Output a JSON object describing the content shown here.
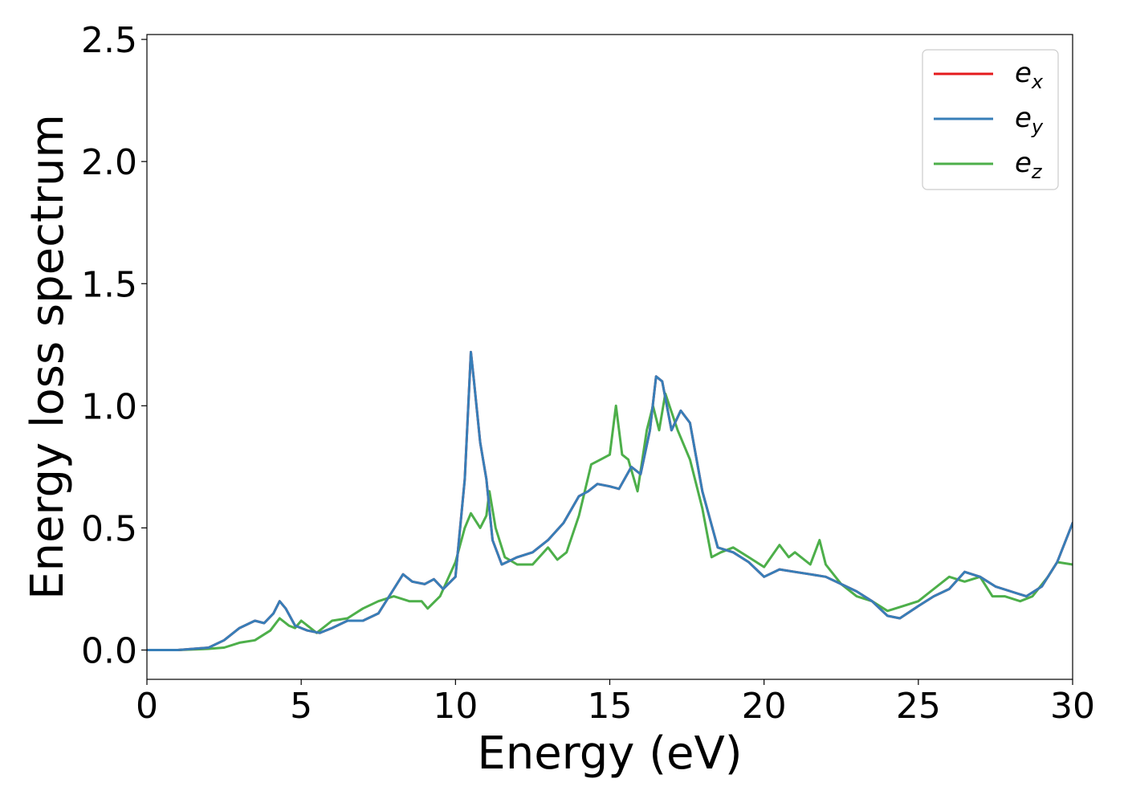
{
  "chart_data": {
    "type": "line",
    "xlabel": "Energy (eV)",
    "ylabel": "Energy loss spectrum",
    "xlim": [
      0,
      30
    ],
    "ylim": [
      -0.12,
      2.52
    ],
    "xticks": [
      "0",
      "5",
      "10",
      "15",
      "20",
      "25",
      "30"
    ],
    "yticks": [
      "0.0",
      "0.5",
      "1.0",
      "1.5",
      "2.0",
      "2.5"
    ],
    "grid": false,
    "legend_position": "top-right",
    "series": [
      {
        "name": "e_x",
        "label_base": "e",
        "label_sub": "x",
        "color": "#e41a1c",
        "x": [
          0,
          1,
          2,
          2.5,
          3,
          3.5,
          3.8,
          4.1,
          4.3,
          4.5,
          4.8,
          5.2,
          5.6,
          6,
          6.5,
          7,
          7.5,
          8,
          8.3,
          8.6,
          9,
          9.3,
          9.6,
          10,
          10.3,
          10.5,
          10.6,
          10.8,
          11,
          11.2,
          11.5,
          12,
          12.5,
          13,
          13.5,
          14,
          14.3,
          14.6,
          15,
          15.3,
          15.7,
          16,
          16.3,
          16.5,
          16.7,
          17,
          17.3,
          17.6,
          18,
          18.5,
          19,
          19.5,
          20,
          20.5,
          21,
          21.5,
          22,
          22.5,
          23,
          23.5,
          24,
          24.4,
          25,
          25.5,
          26,
          26.5,
          27,
          27.5,
          28,
          28.5,
          29,
          29.5,
          30
        ],
        "y": [
          0,
          0,
          0.01,
          0.04,
          0.09,
          0.12,
          0.11,
          0.15,
          0.2,
          0.17,
          0.1,
          0.08,
          0.07,
          0.09,
          0.12,
          0.12,
          0.15,
          0.25,
          0.31,
          0.28,
          0.27,
          0.29,
          0.25,
          0.3,
          0.7,
          1.22,
          1.1,
          0.85,
          0.7,
          0.45,
          0.35,
          0.38,
          0.4,
          0.45,
          0.52,
          0.63,
          0.65,
          0.68,
          0.67,
          0.66,
          0.75,
          0.72,
          0.9,
          1.12,
          1.1,
          0.9,
          0.98,
          0.93,
          0.65,
          0.42,
          0.4,
          0.36,
          0.3,
          0.33,
          0.32,
          0.31,
          0.3,
          0.27,
          0.24,
          0.2,
          0.14,
          0.13,
          0.18,
          0.22,
          0.25,
          0.32,
          0.3,
          0.26,
          0.24,
          0.22,
          0.26,
          0.36,
          0.52
        ]
      },
      {
        "name": "e_y",
        "label_base": "e",
        "label_sub": "y",
        "color": "#377eb8",
        "x": [
          0,
          1,
          2,
          2.5,
          3,
          3.5,
          3.8,
          4.1,
          4.3,
          4.5,
          4.8,
          5.2,
          5.6,
          6,
          6.5,
          7,
          7.5,
          8,
          8.3,
          8.6,
          9,
          9.3,
          9.6,
          10,
          10.3,
          10.5,
          10.6,
          10.8,
          11,
          11.2,
          11.5,
          12,
          12.5,
          13,
          13.5,
          14,
          14.3,
          14.6,
          15,
          15.3,
          15.7,
          16,
          16.3,
          16.5,
          16.7,
          17,
          17.3,
          17.6,
          18,
          18.5,
          19,
          19.5,
          20,
          20.5,
          21,
          21.5,
          22,
          22.5,
          23,
          23.5,
          24,
          24.4,
          25,
          25.5,
          26,
          26.5,
          27,
          27.5,
          28,
          28.5,
          29,
          29.5,
          30
        ],
        "y": [
          0,
          0,
          0.01,
          0.04,
          0.09,
          0.12,
          0.11,
          0.15,
          0.2,
          0.17,
          0.1,
          0.08,
          0.07,
          0.09,
          0.12,
          0.12,
          0.15,
          0.25,
          0.31,
          0.28,
          0.27,
          0.29,
          0.25,
          0.3,
          0.7,
          1.22,
          1.1,
          0.85,
          0.7,
          0.45,
          0.35,
          0.38,
          0.4,
          0.45,
          0.52,
          0.63,
          0.65,
          0.68,
          0.67,
          0.66,
          0.75,
          0.72,
          0.9,
          1.12,
          1.1,
          0.9,
          0.98,
          0.93,
          0.65,
          0.42,
          0.4,
          0.36,
          0.3,
          0.33,
          0.32,
          0.31,
          0.3,
          0.27,
          0.24,
          0.2,
          0.14,
          0.13,
          0.18,
          0.22,
          0.25,
          0.32,
          0.3,
          0.26,
          0.24,
          0.22,
          0.26,
          0.36,
          0.52
        ]
      },
      {
        "name": "e_z",
        "label_base": "e",
        "label_sub": "z",
        "color": "#4daf4a",
        "x": [
          0,
          1,
          2,
          2.5,
          3,
          3.5,
          4,
          4.3,
          4.6,
          4.8,
          5,
          5.5,
          6,
          6.5,
          7,
          7.5,
          8,
          8.5,
          8.9,
          9.1,
          9.5,
          10,
          10.3,
          10.5,
          10.8,
          11,
          11.1,
          11.3,
          11.6,
          12,
          12.5,
          13,
          13.3,
          13.6,
          14,
          14.4,
          14.7,
          15,
          15.2,
          15.4,
          15.6,
          15.9,
          16.2,
          16.4,
          16.6,
          16.8,
          17.2,
          17.6,
          18,
          18.3,
          18.6,
          19,
          19.5,
          20,
          20.5,
          20.8,
          21,
          21.5,
          21.8,
          22,
          22.5,
          23,
          23.5,
          24,
          24.5,
          25,
          25.5,
          26,
          26.5,
          27,
          27.4,
          27.8,
          28.3,
          28.7,
          29.2,
          29.5,
          30
        ],
        "y": [
          0,
          0,
          0.005,
          0.01,
          0.03,
          0.04,
          0.08,
          0.13,
          0.1,
          0.09,
          0.12,
          0.07,
          0.12,
          0.13,
          0.17,
          0.2,
          0.22,
          0.2,
          0.2,
          0.17,
          0.22,
          0.36,
          0.5,
          0.56,
          0.5,
          0.55,
          0.65,
          0.5,
          0.38,
          0.35,
          0.35,
          0.42,
          0.37,
          0.4,
          0.55,
          0.76,
          0.78,
          0.8,
          1.0,
          0.8,
          0.78,
          0.65,
          0.9,
          1.0,
          0.9,
          1.05,
          0.9,
          0.78,
          0.58,
          0.38,
          0.4,
          0.42,
          0.38,
          0.34,
          0.43,
          0.38,
          0.4,
          0.35,
          0.45,
          0.35,
          0.27,
          0.22,
          0.2,
          0.16,
          0.18,
          0.2,
          0.25,
          0.3,
          0.28,
          0.3,
          0.22,
          0.22,
          0.2,
          0.22,
          0.3,
          0.36,
          0.35
        ]
      }
    ]
  }
}
